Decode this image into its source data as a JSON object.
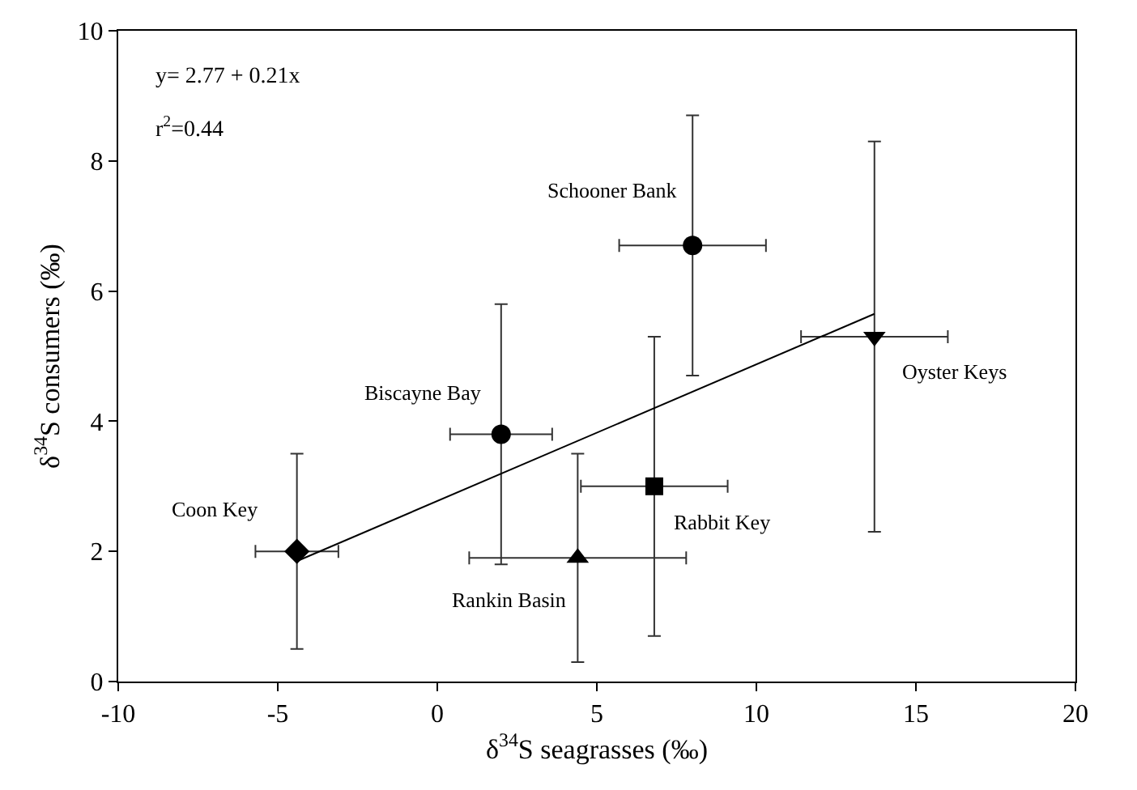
{
  "chart_data": {
    "type": "scatter",
    "xlabel": "δ$^{34}$S seagrasses (‰)",
    "ylabel": "δ$^{34}$S consumers (‰)",
    "xlim": [
      -10,
      20
    ],
    "xticks": [
      -10,
      -5,
      0,
      5,
      10,
      15,
      20
    ],
    "ylim": [
      0,
      10
    ],
    "yticks": [
      0,
      2,
      4,
      6,
      8,
      10
    ],
    "grid": false,
    "legend": false,
    "annotations": [
      "y= 2.77 + 0.21x",
      "r$^{2}$=0.44"
    ],
    "series": [
      {
        "name": "Coon Key",
        "color": "#000000",
        "marker": "diamond",
        "x": [
          -4.4
        ],
        "values": [
          2.0
        ],
        "errors": [
          1.5
        ],
        "xerrors": [
          1.3
        ]
      },
      {
        "name": "Biscayne Bay",
        "color": "#000000",
        "marker": "circle",
        "x": [
          2.0
        ],
        "values": [
          3.8
        ],
        "errors": [
          2.0
        ],
        "xerrors": [
          1.6
        ]
      },
      {
        "name": "Rankin Basin",
        "color": "#000000",
        "marker": "triangle",
        "x": [
          4.4
        ],
        "values": [
          1.9
        ],
        "errors": [
          1.6
        ],
        "xerrors": [
          3.4
        ]
      },
      {
        "name": "Rabbit Key",
        "color": "#000000",
        "marker": "square",
        "x": [
          6.8
        ],
        "values": [
          3.0
        ],
        "errors": [
          2.3
        ],
        "xerrors": [
          2.3
        ]
      },
      {
        "name": "Schooner Bank",
        "color": "#000000",
        "marker": "circle",
        "x": [
          8.0
        ],
        "values": [
          6.7
        ],
        "errors": [
          2.0
        ],
        "xerrors": [
          2.3
        ]
      },
      {
        "name": "Oyster Keys",
        "color": "#000000",
        "marker": "triangle-down",
        "x": [
          13.7
        ],
        "values": [
          5.3
        ],
        "errors": [
          3.0
        ],
        "xerrors": [
          2.3
        ]
      },
      {
        "type": "line",
        "color": "#000000",
        "marker": "none",
        "x": [
          -4.4,
          13.7
        ],
        "values": [
          1.85,
          5.65
        ]
      }
    ]
  }
}
